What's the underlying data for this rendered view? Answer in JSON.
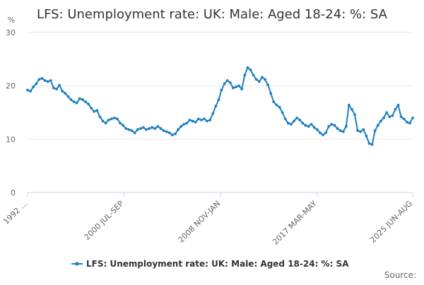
{
  "chart_data": {
    "type": "line",
    "title": "LFS: Unemployment rate: UK: Male: Aged 18-24: %: SA",
    "ylabel": "%",
    "xlabel": "",
    "ylim": [
      0,
      30
    ],
    "yticks": [
      0,
      10,
      20,
      30
    ],
    "xlim": [
      "1992 MAR-MAY",
      "2025 JUN-AUG"
    ],
    "x_tick_labels": [
      "1992 ...",
      "2000 JUL-SEP",
      "2008 NOV-JAN",
      "2017 MAR-MAY",
      "2025 JUN-AUG"
    ],
    "x_tick_dates": [
      "1992-04",
      "2000-08",
      "2008-12",
      "2017-04",
      "2025-07"
    ],
    "grid": true,
    "legend_position": "bottom",
    "series": [
      {
        "name": "LFS: Unemployment rate: UK: Male: Aged 18-24: %: SA",
        "color": "#1c7fc0",
        "x": [
          "1992-04",
          "1992-07",
          "1992-10",
          "1993-01",
          "1993-04",
          "1993-07",
          "1993-10",
          "1994-01",
          "1994-04",
          "1994-07",
          "1994-10",
          "1995-01",
          "1995-04",
          "1995-07",
          "1995-10",
          "1996-01",
          "1996-04",
          "1996-07",
          "1996-10",
          "1997-01",
          "1997-04",
          "1997-07",
          "1997-10",
          "1998-01",
          "1998-04",
          "1998-07",
          "1998-10",
          "1999-01",
          "1999-04",
          "1999-07",
          "1999-10",
          "2000-01",
          "2000-04",
          "2000-07",
          "2000-10",
          "2001-01",
          "2001-04",
          "2001-07",
          "2001-10",
          "2002-01",
          "2002-04",
          "2002-07",
          "2002-10",
          "2003-01",
          "2003-04",
          "2003-07",
          "2003-10",
          "2004-01",
          "2004-04",
          "2004-07",
          "2004-10",
          "2005-01",
          "2005-04",
          "2005-07",
          "2005-10",
          "2006-01",
          "2006-04",
          "2006-07",
          "2006-10",
          "2007-01",
          "2007-04",
          "2007-07",
          "2007-10",
          "2008-01",
          "2008-04",
          "2008-07",
          "2008-10",
          "2009-01",
          "2009-04",
          "2009-07",
          "2009-10",
          "2010-01",
          "2010-04",
          "2010-07",
          "2010-10",
          "2011-01",
          "2011-04",
          "2011-07",
          "2011-10",
          "2012-01",
          "2012-04",
          "2012-07",
          "2012-10",
          "2013-01",
          "2013-04",
          "2013-07",
          "2013-10",
          "2014-01",
          "2014-04",
          "2014-07",
          "2014-10",
          "2015-01",
          "2015-04",
          "2015-07",
          "2015-10",
          "2016-01",
          "2016-04",
          "2016-07",
          "2016-10",
          "2017-01",
          "2017-04",
          "2017-07",
          "2017-10",
          "2018-01",
          "2018-04",
          "2018-07",
          "2018-10",
          "2019-01",
          "2019-04",
          "2019-07",
          "2019-10",
          "2020-01",
          "2020-04",
          "2020-07",
          "2020-10",
          "2021-01",
          "2021-04",
          "2021-07",
          "2021-10",
          "2022-01",
          "2022-04",
          "2022-07",
          "2022-10",
          "2023-01",
          "2023-04",
          "2023-07",
          "2023-10",
          "2024-01",
          "2024-04",
          "2024-07",
          "2024-10",
          "2025-01",
          "2025-04",
          "2025-07"
        ],
        "values": [
          19.2,
          19.0,
          19.8,
          20.4,
          21.2,
          21.4,
          21.0,
          20.8,
          21.0,
          19.6,
          19.4,
          20.1,
          19.0,
          18.6,
          18.0,
          17.4,
          17.0,
          16.8,
          17.6,
          17.4,
          17.0,
          16.6,
          15.8,
          15.2,
          15.4,
          14.2,
          13.4,
          13.0,
          13.6,
          13.8,
          14.0,
          13.8,
          13.0,
          12.6,
          12.0,
          11.8,
          11.6,
          11.2,
          11.8,
          12.0,
          12.2,
          11.8,
          12.0,
          12.2,
          12.0,
          12.4,
          12.0,
          11.6,
          11.4,
          11.2,
          10.8,
          11.0,
          11.8,
          12.4,
          12.8,
          13.0,
          13.6,
          13.4,
          13.2,
          13.8,
          13.6,
          13.8,
          13.4,
          13.6,
          14.8,
          16.2,
          17.4,
          19.2,
          20.4,
          21.0,
          20.6,
          19.6,
          19.8,
          20.0,
          19.4,
          22.0,
          23.4,
          23.0,
          22.0,
          21.2,
          20.8,
          21.6,
          21.2,
          20.2,
          18.6,
          17.0,
          16.4,
          16.0,
          15.0,
          13.8,
          13.0,
          12.8,
          13.4,
          14.0,
          13.6,
          13.0,
          12.6,
          12.4,
          12.8,
          12.2,
          11.8,
          11.2,
          10.8,
          11.2,
          12.4,
          12.8,
          12.6,
          12.0,
          11.6,
          11.4,
          12.4,
          16.4,
          15.6,
          14.6,
          11.6,
          11.4,
          11.8,
          10.6,
          9.2,
          9.0,
          11.6,
          12.6,
          13.4,
          14.0,
          15.0,
          14.2,
          14.4,
          15.6,
          16.4,
          14.2,
          13.8,
          13.2,
          13.0,
          14.0
        ]
      }
    ]
  },
  "source_label": "Source:"
}
